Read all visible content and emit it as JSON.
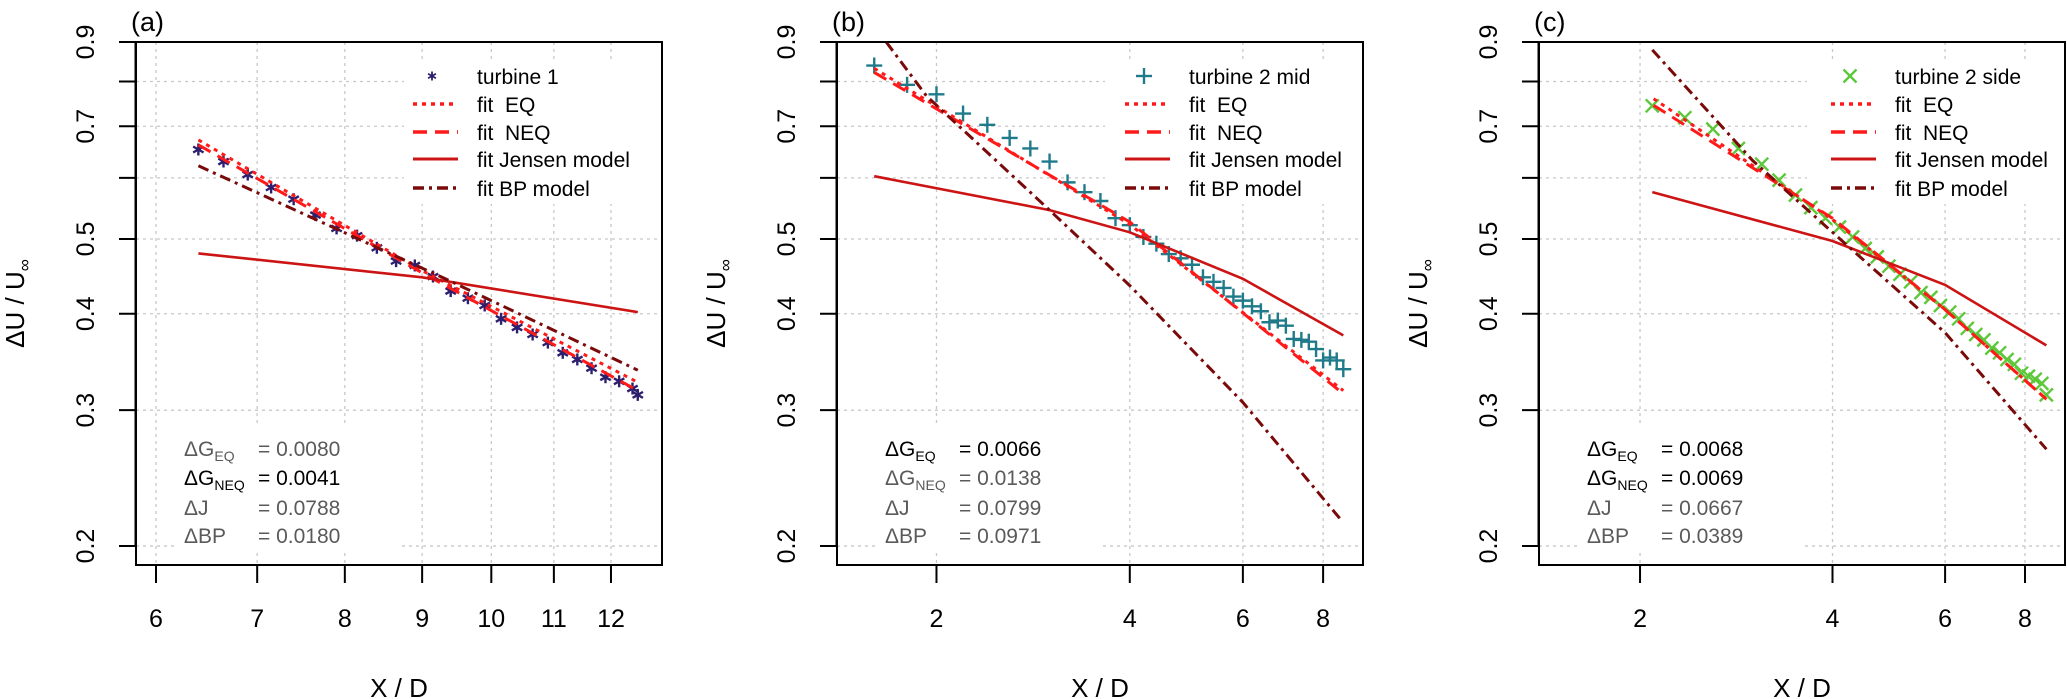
{
  "chart_data": [
    {
      "panel": "(a)",
      "type": "scatter",
      "xlabel": "X / D",
      "ylabel": "ΔU / U",
      "ylabel_sub": "∞",
      "xscale": "log",
      "yscale": "log",
      "xlim": [
        5.82,
        12.97
      ],
      "ylim": [
        0.189,
        0.9
      ],
      "grid": true,
      "legend_position": "top-right",
      "xticks": [
        {
          "v": 6,
          "label": "6"
        },
        {
          "v": 7,
          "label": "7"
        },
        {
          "v": 8,
          "label": "8"
        },
        {
          "v": 9,
          "label": "9"
        },
        {
          "v": 10,
          "label": "10"
        },
        {
          "v": 11,
          "label": "11"
        },
        {
          "v": 12,
          "label": "12"
        }
      ],
      "yticks": [
        {
          "v": 0.2,
          "label": "0.2"
        },
        {
          "v": 0.3,
          "label": "0.3"
        },
        {
          "v": 0.4,
          "label": "0.4"
        },
        {
          "v": 0.5,
          "label": "0.5"
        },
        {
          "v": 0.6,
          "label": ""
        },
        {
          "v": 0.7,
          "label": "0.7"
        },
        {
          "v": 0.8,
          "label": ""
        },
        {
          "v": 0.9,
          "label": "0.9"
        }
      ],
      "series": [
        {
          "name": "turbine 1",
          "kind": "points",
          "marker": "star",
          "color": "#2e1f6e",
          "x": [
            6.4,
            6.65,
            6.9,
            7.15,
            7.4,
            7.65,
            7.9,
            8.15,
            8.4,
            8.65,
            8.9,
            9.15,
            9.4,
            9.65,
            9.9,
            10.15,
            10.4,
            10.65,
            10.9,
            11.15,
            11.4,
            11.65,
            11.9,
            12.15,
            12.4,
            12.5
          ],
          "y": [
            0.653,
            0.63,
            0.606,
            0.583,
            0.563,
            0.537,
            0.516,
            0.505,
            0.487,
            0.468,
            0.462,
            0.447,
            0.428,
            0.419,
            0.41,
            0.394,
            0.384,
            0.376,
            0.367,
            0.356,
            0.349,
            0.34,
            0.331,
            0.327,
            0.32,
            0.314
          ]
        },
        {
          "name": "fit  EQ",
          "kind": "line",
          "style": "dotted",
          "color": "#ff1a1a",
          "x": [
            6.4,
            9.0,
            12.5
          ],
          "y": [
            0.672,
            0.455,
            0.326
          ]
        },
        {
          "name": "fit  NEQ",
          "kind": "line",
          "style": "dashed",
          "color": "#ff1a1a",
          "x": [
            6.4,
            9.0,
            12.5
          ],
          "y": [
            0.662,
            0.452,
            0.318
          ]
        },
        {
          "name": "fit Jensen model",
          "kind": "line",
          "style": "solid",
          "color": "#cc1414",
          "x": [
            6.4,
            9.0,
            12.5
          ],
          "y": [
            0.479,
            0.446,
            0.402
          ]
        },
        {
          "name": "fit BP model",
          "kind": "line",
          "style": "dashdot",
          "color": "#7a0a0a",
          "x": [
            6.4,
            9.3,
            12.5
          ],
          "y": [
            0.622,
            0.445,
            0.338
          ]
        }
      ],
      "stats": [
        {
          "label": "ΔG",
          "sub": "EQ",
          "value": "= 0.0080",
          "best": false
        },
        {
          "label": "ΔG",
          "sub": "NEQ",
          "value": "= 0.0041",
          "best": true
        },
        {
          "label": "ΔJ",
          "sub": "",
          "value": "= 0.0788",
          "best": false
        },
        {
          "label": "ΔBP",
          "sub": "",
          "value": "= 0.0180",
          "best": false
        }
      ]
    },
    {
      "panel": "(b)",
      "type": "scatter",
      "xlabel": "X / D",
      "ylabel": "ΔU / U",
      "ylabel_sub": "∞",
      "xscale": "log",
      "yscale": "log",
      "xlim": [
        1.4,
        9.23
      ],
      "ylim": [
        0.189,
        0.9
      ],
      "grid": true,
      "legend_position": "top-right",
      "xticks": [
        {
          "v": 2,
          "label": "2"
        },
        {
          "v": 4,
          "label": "4"
        },
        {
          "v": 6,
          "label": "6"
        },
        {
          "v": 8,
          "label": "8"
        }
      ],
      "yticks": [
        {
          "v": 0.2,
          "label": "0.2"
        },
        {
          "v": 0.3,
          "label": "0.3"
        },
        {
          "v": 0.4,
          "label": "0.4"
        },
        {
          "v": 0.5,
          "label": "0.5"
        },
        {
          "v": 0.6,
          "label": ""
        },
        {
          "v": 0.7,
          "label": "0.7"
        },
        {
          "v": 0.8,
          "label": ""
        },
        {
          "v": 0.9,
          "label": "0.9"
        }
      ],
      "series": [
        {
          "name": "turbine 2 mid",
          "kind": "points",
          "marker": "plus",
          "color": "#1f7a8a",
          "x": [
            1.6,
            1.8,
            2.0,
            2.2,
            2.4,
            2.6,
            2.8,
            3.0,
            3.2,
            3.4,
            3.6,
            3.8,
            4.0,
            4.2,
            4.4,
            4.6,
            4.8,
            5.0,
            5.2,
            5.4,
            5.6,
            5.8,
            6.0,
            6.2,
            6.4,
            6.6,
            6.8,
            7.0,
            7.2,
            7.4,
            7.6,
            7.8,
            8.0,
            8.2,
            8.4,
            8.6
          ],
          "y": [
            0.839,
            0.792,
            0.77,
            0.727,
            0.703,
            0.676,
            0.655,
            0.63,
            0.592,
            0.575,
            0.56,
            0.532,
            0.521,
            0.503,
            0.493,
            0.478,
            0.472,
            0.463,
            0.446,
            0.44,
            0.432,
            0.421,
            0.416,
            0.409,
            0.403,
            0.39,
            0.392,
            0.386,
            0.371,
            0.37,
            0.368,
            0.36,
            0.348,
            0.351,
            0.348,
            0.339
          ]
        },
        {
          "name": "fit  EQ",
          "kind": "line",
          "style": "dotted",
          "color": "#ff1a1a",
          "x": [
            1.6,
            4.0,
            8.6
          ],
          "y": [
            0.832,
            0.522,
            0.318
          ]
        },
        {
          "name": "fit  NEQ",
          "kind": "line",
          "style": "dashed",
          "color": "#ff1a1a",
          "x": [
            1.6,
            4.0,
            8.6
          ],
          "y": [
            0.822,
            0.526,
            0.315
          ]
        },
        {
          "name": "fit Jensen model",
          "kind": "line",
          "style": "solid",
          "color": "#cc1414",
          "x": [
            1.6,
            3.0,
            4.0,
            6.0,
            8.6
          ],
          "y": [
            0.603,
            0.545,
            0.51,
            0.444,
            0.375
          ]
        },
        {
          "name": "fit BP model",
          "kind": "line",
          "style": "dashdot",
          "color": "#7a0a0a",
          "x": [
            1.67,
            1.93,
            2.97,
            4.0,
            6.0,
            8.58
          ],
          "y": [
            0.9,
            0.766,
            0.549,
            0.435,
            0.307,
            0.215
          ]
        }
      ],
      "stats": [
        {
          "label": "ΔG",
          "sub": "EQ",
          "value": "= 0.0066",
          "best": true
        },
        {
          "label": "ΔG",
          "sub": "NEQ",
          "value": "= 0.0138",
          "best": false
        },
        {
          "label": "ΔJ",
          "sub": "",
          "value": "= 0.0799",
          "best": false
        },
        {
          "label": "ΔBP",
          "sub": "",
          "value": "= 0.0971",
          "best": false
        }
      ]
    },
    {
      "panel": "(c)",
      "type": "scatter",
      "xlabel": "X / D",
      "ylabel": "ΔU / U",
      "ylabel_sub": "∞",
      "xscale": "log",
      "yscale": "log",
      "xlim": [
        1.39,
        9.24
      ],
      "ylim": [
        0.189,
        0.9
      ],
      "grid": true,
      "legend_position": "top-right",
      "xticks": [
        {
          "v": 2,
          "label": "2"
        },
        {
          "v": 4,
          "label": "4"
        },
        {
          "v": 6,
          "label": "6"
        },
        {
          "v": 8,
          "label": "8"
        }
      ],
      "yticks": [
        {
          "v": 0.2,
          "label": "0.2"
        },
        {
          "v": 0.3,
          "label": "0.3"
        },
        {
          "v": 0.4,
          "label": "0.4"
        },
        {
          "v": 0.5,
          "label": "0.5"
        },
        {
          "v": 0.6,
          "label": ""
        },
        {
          "v": 0.7,
          "label": "0.7"
        },
        {
          "v": 0.8,
          "label": ""
        },
        {
          "v": 0.9,
          "label": "0.9"
        }
      ],
      "series": [
        {
          "name": "turbine 2 side",
          "kind": "points",
          "marker": "cross",
          "color": "#5cc83a",
          "x": [
            2.09,
            2.35,
            2.6,
            2.85,
            3.1,
            3.3,
            3.5,
            3.7,
            3.9,
            4.1,
            4.3,
            4.5,
            4.7,
            4.9,
            5.1,
            5.3,
            5.5,
            5.7,
            5.9,
            6.1,
            6.3,
            6.5,
            6.7,
            6.9,
            7.1,
            7.3,
            7.5,
            7.7,
            7.9,
            8.1,
            8.3,
            8.5,
            8.64
          ],
          "y": [
            0.744,
            0.718,
            0.694,
            0.655,
            0.625,
            0.596,
            0.57,
            0.549,
            0.532,
            0.518,
            0.503,
            0.486,
            0.474,
            0.461,
            0.45,
            0.44,
            0.426,
            0.42,
            0.41,
            0.402,
            0.394,
            0.383,
            0.376,
            0.37,
            0.361,
            0.356,
            0.349,
            0.344,
            0.335,
            0.332,
            0.329,
            0.325,
            0.314
          ]
        },
        {
          "name": "fit  EQ",
          "kind": "line",
          "style": "dotted",
          "color": "#ff1a1a",
          "x": [
            2.1,
            4.0,
            6.0,
            8.64
          ],
          "y": [
            0.76,
            0.53,
            0.405,
            0.31
          ]
        },
        {
          "name": "fit  NEQ",
          "kind": "line",
          "style": "dashed",
          "color": "#ff1a1a",
          "x": [
            2.1,
            4.0,
            6.0,
            8.64
          ],
          "y": [
            0.745,
            0.532,
            0.405,
            0.31
          ]
        },
        {
          "name": "fit Jensen model",
          "kind": "line",
          "style": "solid",
          "color": "#cc1414",
          "x": [
            2.09,
            4.0,
            6.0,
            8.64
          ],
          "y": [
            0.575,
            0.497,
            0.436,
            0.364
          ]
        },
        {
          "name": "fit BP model",
          "kind": "line",
          "style": "dashdot",
          "color": "#7a0a0a",
          "x": [
            2.09,
            3.0,
            4.0,
            6.0,
            8.64
          ],
          "y": [
            0.879,
            0.632,
            0.51,
            0.378,
            0.267
          ]
        }
      ],
      "stats": [
        {
          "label": "ΔG",
          "sub": "EQ",
          "value": "= 0.0068",
          "best": true
        },
        {
          "label": "ΔG",
          "sub": "NEQ",
          "value": "= 0.0069",
          "best": true
        },
        {
          "label": "ΔJ",
          "sub": "",
          "value": "= 0.0667",
          "best": false
        },
        {
          "label": "ΔBP",
          "sub": "",
          "value": "= 0.0389",
          "best": false
        }
      ]
    }
  ]
}
